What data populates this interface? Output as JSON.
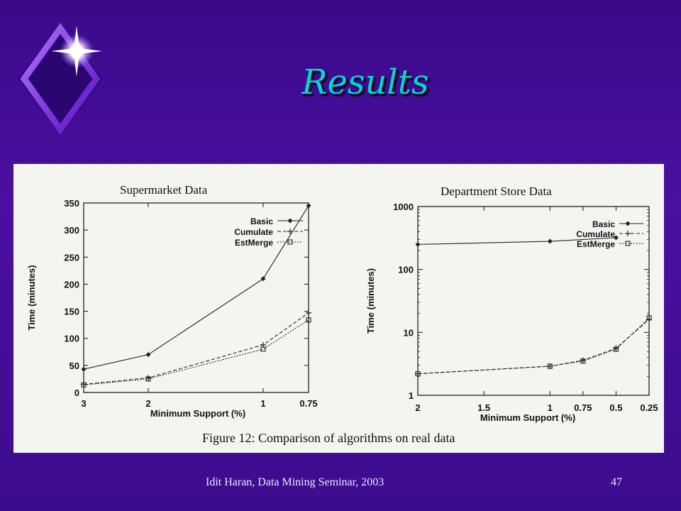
{
  "slide": {
    "title": "Results",
    "footer": "Idit Haran, Data Mining Seminar, 2003",
    "page_number": "47",
    "figure_caption": "Figure 12:  Comparison of algorithms on real data",
    "accent_color": "#00d8d8",
    "background_color": "#3f0b93",
    "logo_icon": "diamond-star-icon"
  },
  "chart_data": [
    {
      "type": "line",
      "title": "Supermarket Data",
      "xlabel": "Minimum Support (%)",
      "ylabel": "Time (minutes)",
      "x": [
        3,
        2,
        1,
        0.75
      ],
      "x_ticks": [
        "3",
        "2",
        "1",
        "0.75"
      ],
      "y_ticks": [
        "0",
        "50",
        "100",
        "150",
        "200",
        "250",
        "300",
        "350"
      ],
      "ylim": [
        0,
        350
      ],
      "grid": false,
      "legend_position": "top-right",
      "series": [
        {
          "name": "Basic",
          "marker": "diamond",
          "dash": "solid",
          "values": [
            43,
            70,
            210,
            345
          ]
        },
        {
          "name": "Cumulate",
          "marker": "plus",
          "dash": "dashed",
          "values": [
            15,
            27,
            88,
            147
          ]
        },
        {
          "name": "EstMerge",
          "marker": "square",
          "dash": "dotted",
          "values": [
            14,
            25,
            80,
            134
          ]
        }
      ]
    },
    {
      "type": "line",
      "title": "Department Store Data",
      "xlabel": "Minimum Support (%)",
      "ylabel": "Time (minutes)",
      "x": [
        2,
        1,
        0.75,
        0.5,
        0.25
      ],
      "x_ticks": [
        "2",
        "1.5",
        "1",
        "0.75",
        "0.5",
        "0.25"
      ],
      "y_ticks": [
        "1",
        "10",
        "100",
        "1000"
      ],
      "y_scale": "log",
      "ylim": [
        1,
        1000
      ],
      "grid": false,
      "legend_position": "top-right",
      "series": [
        {
          "name": "Basic",
          "marker": "diamond",
          "dash": "solid",
          "x": [
            2,
            1,
            0.5
          ],
          "values": [
            250,
            280,
            320
          ]
        },
        {
          "name": "Cumulate",
          "marker": "plus",
          "dash": "dashed",
          "x": [
            2,
            1,
            0.75,
            0.5,
            0.25
          ],
          "values": [
            2.2,
            2.9,
            3.6,
            5.6,
            16
          ]
        },
        {
          "name": "EstMerge",
          "marker": "square",
          "dash": "dotted",
          "x": [
            2,
            1,
            0.75,
            0.5,
            0.25
          ],
          "values": [
            2.2,
            2.9,
            3.5,
            5.4,
            17
          ]
        }
      ]
    }
  ]
}
